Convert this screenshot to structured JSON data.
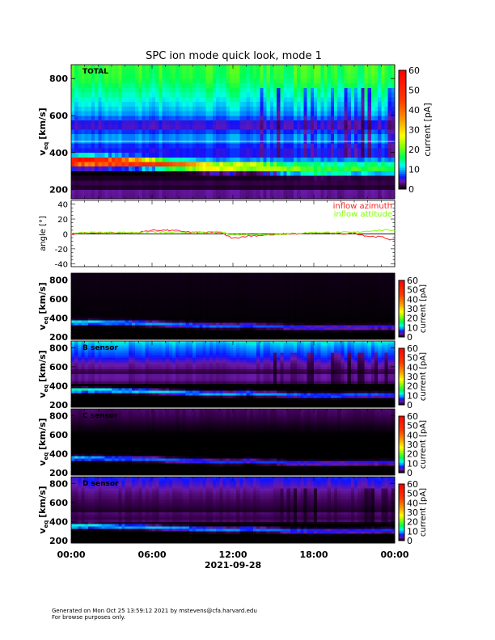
{
  "chart_data": {
    "title": "SPC ion mode quick look, mode 1",
    "x_axis": {
      "tick_labels": [
        "00:00",
        "06:00",
        "12:00",
        "18:00",
        "00:00"
      ],
      "date_label": "2021-09-28",
      "range_hours": [
        0,
        24
      ]
    },
    "colorbar": {
      "label": "current [pA]",
      "range": [
        0,
        60
      ],
      "ticks": [
        "0",
        "10",
        "20",
        "30",
        "40",
        "50",
        "60"
      ],
      "colormap": [
        [
          0,
          "#000000"
        ],
        [
          2,
          "#3a0050"
        ],
        [
          4,
          "#6a1aa8"
        ],
        [
          6,
          "#1010ff"
        ],
        [
          9,
          "#0090ff"
        ],
        [
          12,
          "#00ffe8"
        ],
        [
          16,
          "#00ff50"
        ],
        [
          22,
          "#90ff00"
        ],
        [
          27,
          "#ffff00"
        ],
        [
          35,
          "#ff9a00"
        ],
        [
          45,
          "#ff3a00"
        ],
        [
          60,
          "#ff0000"
        ]
      ]
    },
    "spectrograms": [
      {
        "type": "heatmap",
        "label": "TOTAL",
        "ylabel_main": "v",
        "ylabel_sub": "eq",
        "ylabel_unit": "[km/s]",
        "y_ticks": [
          "200",
          "400",
          "600",
          "800"
        ],
        "ylim": [
          150,
          875
        ],
        "beam_peak_current_pA": [
          55,
          45,
          30,
          22,
          20,
          18,
          16
        ],
        "background_profile": [
          [
            150,
            3
          ],
          [
            185,
            4
          ],
          [
            205,
            0
          ],
          [
            225,
            3
          ],
          [
            250,
            0.5
          ],
          [
            270,
            1
          ],
          [
            290,
            0
          ],
          [
            310,
            2
          ],
          [
            330,
            14
          ],
          [
            380,
            6
          ],
          [
            430,
            6
          ],
          [
            460,
            9
          ],
          [
            500,
            9
          ],
          [
            525,
            5
          ],
          [
            560,
            5
          ],
          [
            600,
            9
          ],
          [
            650,
            11
          ],
          [
            700,
            13
          ],
          [
            750,
            15
          ],
          [
            800,
            17
          ],
          [
            875,
            18
          ]
        ],
        "variability_after_hour": 14
      },
      {
        "type": "heatmap",
        "label": "",
        "ylabel_main": "v",
        "ylabel_sub": "eq",
        "ylabel_unit": "[km/s]",
        "y_ticks": [
          "200",
          "400",
          "600",
          "800"
        ],
        "ylim": [
          175,
          870
        ],
        "beam_peak_current_pA": [
          14,
          10,
          9,
          8,
          7,
          6,
          6
        ],
        "background_profile": [
          [
            175,
            0
          ],
          [
            870,
            0.5
          ]
        ],
        "variability_after_hour": 24
      },
      {
        "type": "heatmap",
        "label": "B sensor",
        "ylabel_main": "v",
        "ylabel_sub": "eq",
        "ylabel_unit": "[km/s]",
        "y_ticks": [
          "200",
          "400",
          "600",
          "800"
        ],
        "ylim": [
          175,
          870
        ],
        "beam_peak_current_pA": [
          16,
          12,
          11,
          10,
          9,
          9,
          8
        ],
        "background_profile": [
          [
            175,
            0
          ],
          [
            410,
            0
          ],
          [
            430,
            2
          ],
          [
            470,
            3.5
          ],
          [
            520,
            3.5
          ],
          [
            545,
            1
          ],
          [
            575,
            3
          ],
          [
            640,
            4
          ],
          [
            700,
            6
          ],
          [
            780,
            8
          ],
          [
            840,
            10
          ],
          [
            870,
            12
          ]
        ],
        "variability_after_hour": 14
      },
      {
        "type": "heatmap",
        "label": "C sensor",
        "ylabel_main": "v",
        "ylabel_sub": "eq",
        "ylabel_unit": "[km/s]",
        "y_ticks": [
          "200",
          "400",
          "600",
          "800"
        ],
        "ylim": [
          175,
          870
        ],
        "beam_peak_current_pA": [
          12,
          9,
          8,
          7,
          7,
          6,
          6
        ],
        "background_profile": [
          [
            175,
            0
          ],
          [
            600,
            0
          ],
          [
            700,
            0.8
          ],
          [
            800,
            2
          ],
          [
            870,
            2.5
          ]
        ],
        "variability_after_hour": 24
      },
      {
        "type": "heatmap",
        "label": "D sensor",
        "ylabel_main": "v",
        "ylabel_sub": "eq",
        "ylabel_unit": "[km/s]",
        "y_ticks": [
          "200",
          "400",
          "600",
          "800"
        ],
        "ylim": [
          175,
          870
        ],
        "beam_peak_current_pA": [
          15,
          11,
          10,
          9,
          8,
          7,
          7
        ],
        "background_profile": [
          [
            175,
            0
          ],
          [
            380,
            0
          ],
          [
            410,
            2.5
          ],
          [
            450,
            1.5
          ],
          [
            480,
            3
          ],
          [
            510,
            1
          ],
          [
            600,
            2
          ],
          [
            700,
            3
          ],
          [
            800,
            5
          ],
          [
            870,
            6
          ]
        ],
        "variability_after_hour": 14
      }
    ],
    "beam_velocity_km_s": {
      "hours": [
        0,
        1,
        2,
        3,
        4,
        5,
        6,
        7,
        8,
        9,
        10,
        11,
        12,
        13,
        14,
        15,
        16,
        17,
        18,
        19,
        20,
        21,
        22,
        23,
        24
      ],
      "values": [
        355,
        355,
        352,
        350,
        348,
        345,
        340,
        335,
        330,
        325,
        320,
        318,
        315,
        325,
        315,
        312,
        305,
        303,
        300,
        300,
        300,
        302,
        305,
        305,
        305
      ]
    },
    "angle_panel": {
      "type": "line",
      "ylabel": "angle [°]",
      "y_ticks": [
        "-40",
        "-20",
        "0",
        "20",
        "40"
      ],
      "ylim": [
        -44,
        45
      ],
      "x_hours": [
        0,
        1,
        2,
        3,
        4,
        5,
        6,
        7,
        8,
        9,
        10,
        11,
        12,
        13,
        14,
        15,
        16,
        17,
        18,
        19,
        20,
        21,
        22,
        23,
        24
      ],
      "series": [
        {
          "name": "inflow azimuth",
          "color": "#ff2020",
          "values": [
            -1,
            2,
            1,
            2,
            1,
            2,
            5,
            5,
            4,
            2,
            2,
            2,
            -6,
            -3,
            -2,
            -1,
            0,
            0,
            1,
            1,
            0,
            1,
            -3,
            -4,
            -9
          ]
        },
        {
          "name": "inflow attitude",
          "color": "#80ff00",
          "values": [
            1,
            2,
            2,
            2,
            2,
            2,
            3,
            2,
            2,
            2,
            2,
            3,
            -1,
            -1,
            -1,
            -1,
            0,
            1,
            2,
            2,
            2,
            2,
            4,
            5,
            5
          ]
        }
      ]
    }
  },
  "footer": {
    "line1": "Generated on Mon Oct 25 13:59:12 2021 by mstevens@cfa.harvard.edu",
    "line2": "For browse purposes only."
  }
}
